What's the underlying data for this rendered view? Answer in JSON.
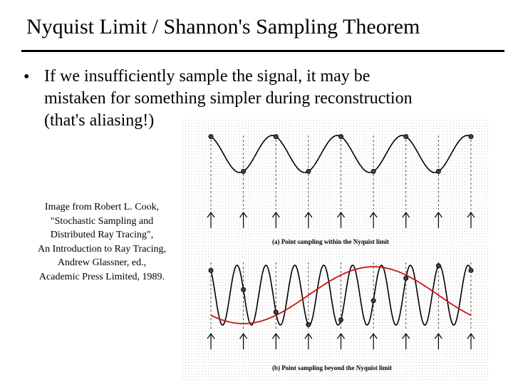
{
  "slide": {
    "title": "Nyquist Limit / Shannon's Sampling Theorem",
    "bullet": {
      "marker": "•",
      "lines": [
        "If we insufficiently sample the signal, it may be",
        "mistaken for something simpler during reconstruction",
        "(that's aliasing!)"
      ]
    },
    "caption": [
      "Image from Robert L. Cook,",
      "\"Stochastic Sampling and",
      "Distributed Ray Tracing\",",
      "An Introduction to Ray Tracing,",
      "Andrew Glassner, ed.,",
      "Academic Press Limited, 1989."
    ]
  },
  "figure": {
    "label_a": "(a) Point sampling within the Nyquist limit",
    "label_b": "(b) Point sampling beyond the Nyquist limit",
    "signal_color": "#000000",
    "alias_color": "#cc1111",
    "sample_marker": "circle",
    "sample_arrow": "up-arrow-icon"
  }
}
